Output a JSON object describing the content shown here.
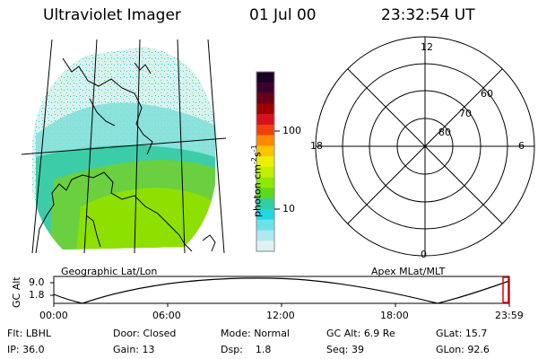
{
  "header": {
    "title": "Ultraviolet Imager",
    "date": "01 Jul 00",
    "time": "23:32:54 UT"
  },
  "geo_panel": {
    "caption": "Geographic Lat/Lon"
  },
  "colorbar": {
    "unit_label": "photon cm",
    "unit_exp1": "-2",
    "unit_s": "s",
    "unit_exp2": "-1",
    "tick_labels": [
      "100",
      "10"
    ],
    "colors": [
      "#1a0022",
      "#3b0030",
      "#6a0018",
      "#a00000",
      "#d81020",
      "#f04010",
      "#ff8800",
      "#ffc400",
      "#eaf000",
      "#c0f000",
      "#8ee800",
      "#5cd820",
      "#30d0a0",
      "#20d8e0",
      "#70e0e8",
      "#b0e8f0",
      "#e0f0f4"
    ]
  },
  "polar_panel": {
    "caption": "Apex MLat/MLT",
    "mlt_labels": {
      "top": "12",
      "left": "18",
      "right": "6",
      "bottom": "0"
    },
    "lat_labels": [
      "60",
      "70",
      "80"
    ]
  },
  "altitude_panel": {
    "ylabel": "GC Alt",
    "y_ticks": [
      "9.0",
      "1.8"
    ],
    "x_ticks": [
      "00:00",
      "06:00",
      "12:00",
      "18:00",
      "23:59"
    ]
  },
  "info": {
    "row1": [
      {
        "label": "Flt:",
        "value": "LBHL"
      },
      {
        "label": "Door:",
        "value": "Closed"
      },
      {
        "label": "Mode:",
        "value": "Normal"
      },
      {
        "label": "GC Alt:",
        "value": "6.9 Re"
      },
      {
        "label": "GLat:",
        "value": "15.7"
      }
    ],
    "row2": [
      {
        "label": "IP:",
        "value": "36.0"
      },
      {
        "label": "Gain:",
        "value": "13"
      },
      {
        "label": "Dsp:",
        "value": "1.8"
      },
      {
        "label": "Seq:",
        "value": "39"
      },
      {
        "label": "GLon:",
        "value": "92.6"
      }
    ]
  }
}
